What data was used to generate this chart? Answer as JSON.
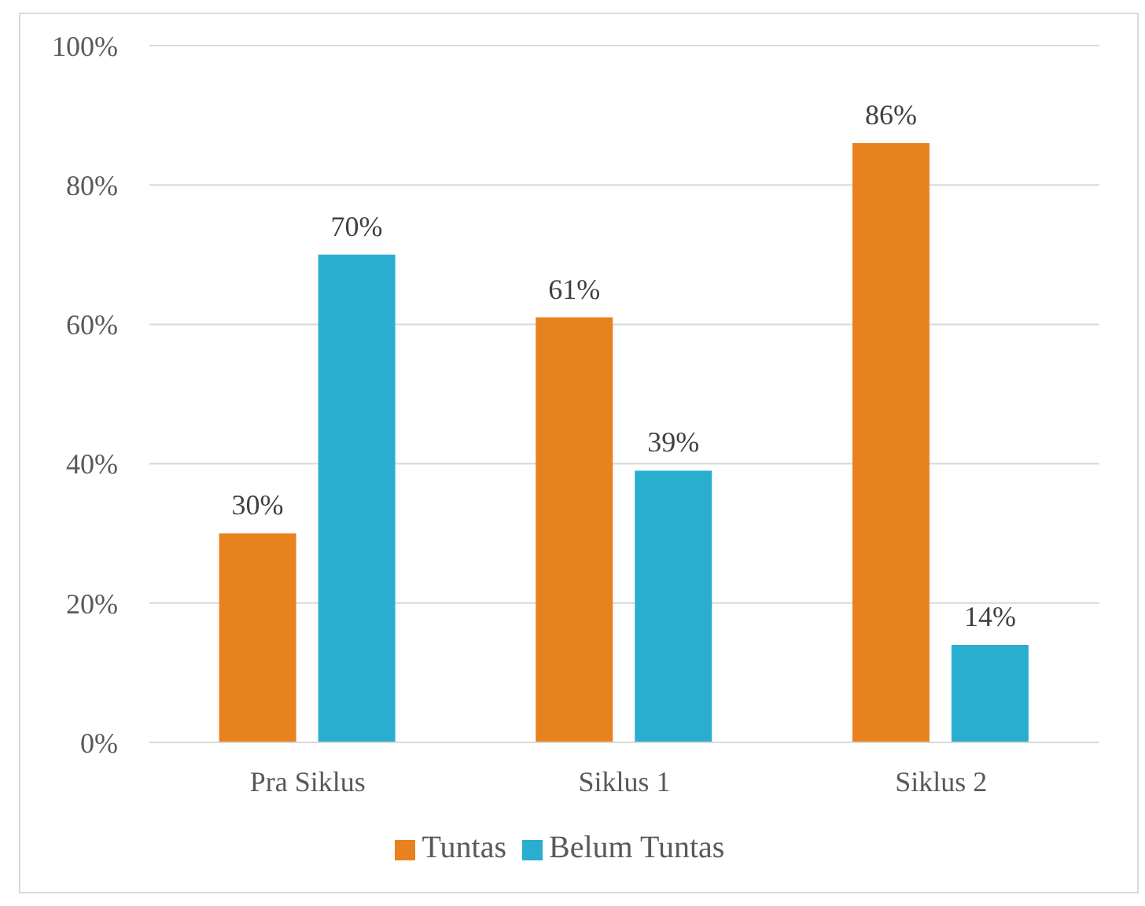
{
  "chart_data": {
    "type": "bar",
    "categories": [
      "Pra Siklus",
      "Siklus 1",
      "Siklus 2"
    ],
    "series": [
      {
        "name": "Tuntas",
        "color": "#e8821e",
        "values": [
          30,
          61,
          86
        ],
        "value_labels": [
          "30%",
          "61%",
          "86%"
        ]
      },
      {
        "name": "Belum Tuntas",
        "color": "#2aaed0",
        "values": [
          70,
          39,
          14
        ],
        "value_labels": [
          "70%",
          "39%",
          "14%"
        ]
      }
    ],
    "ylim": [
      0,
      100
    ],
    "yticks": [
      {
        "value": 0,
        "label": "0%"
      },
      {
        "value": 20,
        "label": "20%"
      },
      {
        "value": 40,
        "label": "40%"
      },
      {
        "value": 60,
        "label": "60%"
      },
      {
        "value": 80,
        "label": "80%"
      },
      {
        "value": 100,
        "label": "100%"
      }
    ],
    "grid": "y",
    "legend": "bottom"
  }
}
